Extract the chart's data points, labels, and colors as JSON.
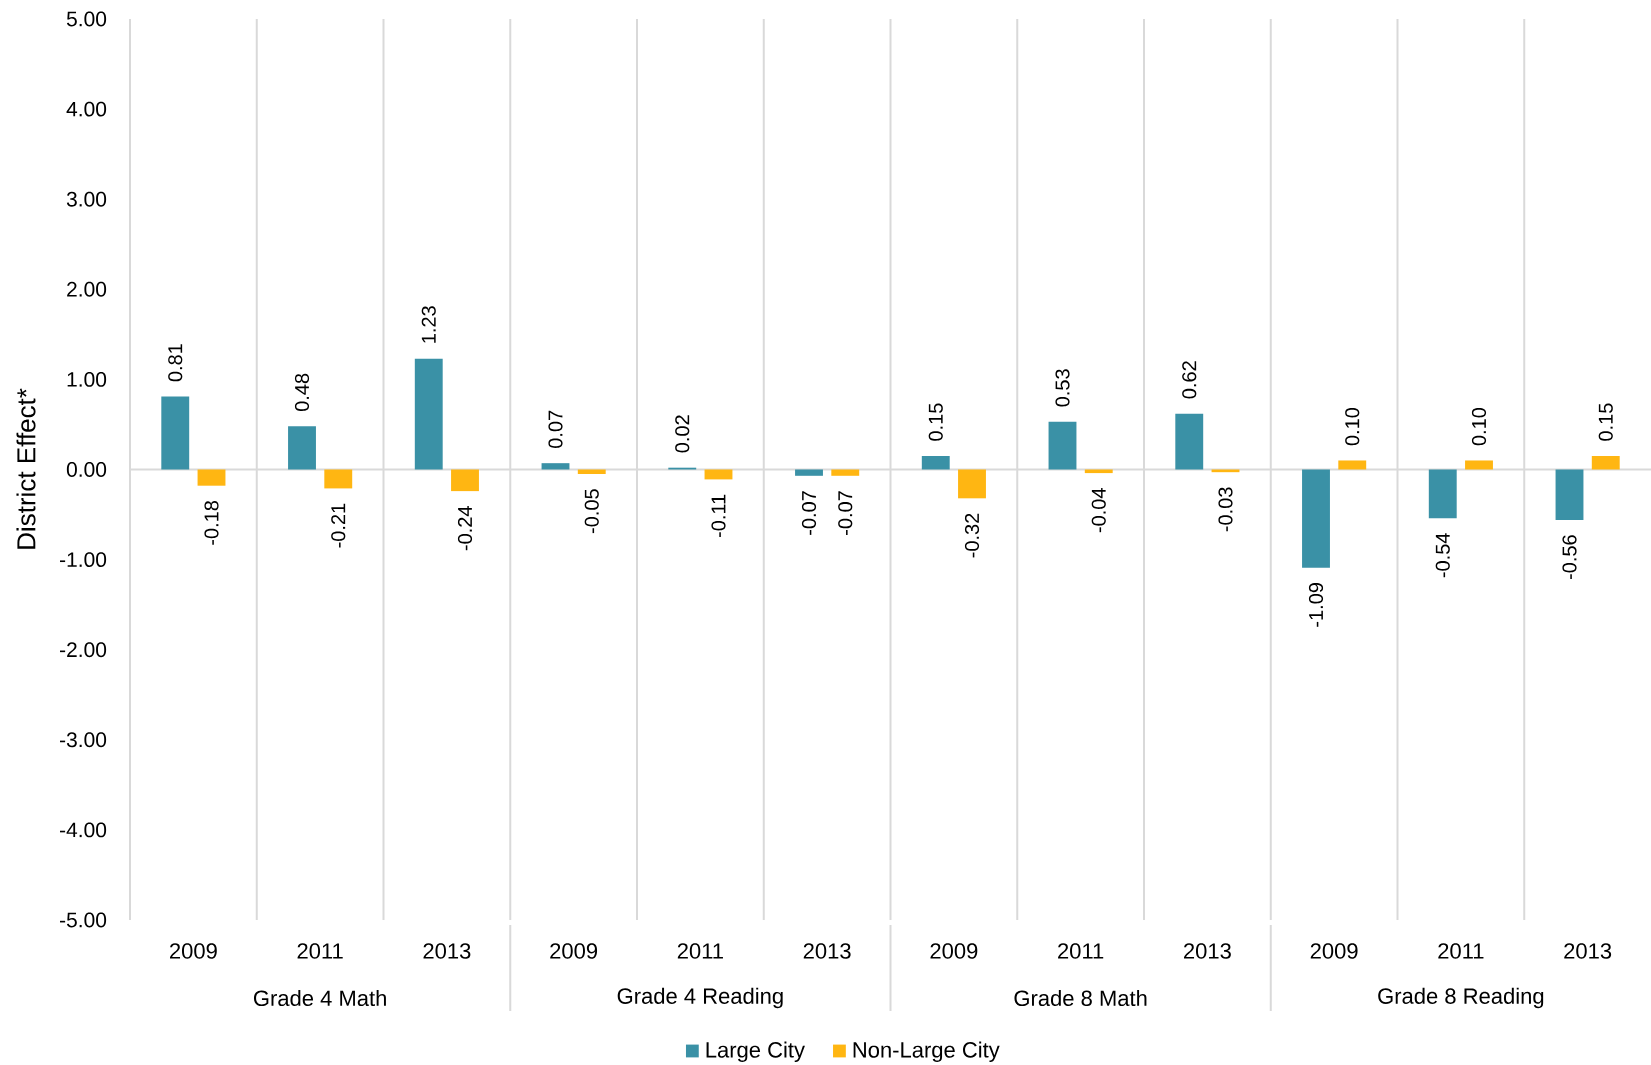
{
  "chart_data": {
    "type": "bar",
    "ylabel": "District Effect*",
    "categories": [
      "2009",
      "2011",
      "2013",
      "2009",
      "2011",
      "2013",
      "2009",
      "2011",
      "2013",
      "2009",
      "2011",
      "2013"
    ],
    "annotations": [
      "Grade 4 Math",
      "Grade 4  Reading",
      "Grade 8 Math",
      "Grade 8 Reading"
    ],
    "series": [
      {
        "name": "Large City",
        "color": "#3a91a6",
        "values": [
          0.81,
          0.48,
          1.23,
          0.07,
          0.02,
          -0.07,
          0.15,
          0.53,
          0.62,
          -1.09,
          -0.54,
          -0.56
        ],
        "value_labels": [
          "0.81",
          "0.48",
          "1.23",
          "0.07",
          "0.02",
          "-0.07",
          "0.15",
          "0.53",
          "0.62",
          "-1.09",
          "-0.54",
          "-0.56"
        ]
      },
      {
        "name": "Non-Large City",
        "color": "#ffb612",
        "values": [
          -0.18,
          -0.21,
          -0.24,
          -0.05,
          -0.11,
          -0.07,
          -0.32,
          -0.04,
          -0.03,
          0.1,
          0.1,
          0.15
        ],
        "value_labels": [
          "-0.18",
          "-0.21",
          "-0.24",
          "-0.05",
          "-0.11",
          "-0.07",
          "-0.32",
          "-0.04",
          "-0.03",
          "0.10",
          "0.10",
          "0.15"
        ]
      }
    ],
    "ylim": [
      -5,
      5
    ],
    "yticks": [
      {
        "value": -5,
        "label": "-5.00"
      },
      {
        "value": -4,
        "label": "-4.00"
      },
      {
        "value": -3,
        "label": "-3.00"
      },
      {
        "value": -2,
        "label": "-2.00"
      },
      {
        "value": -1,
        "label": "-1.00"
      },
      {
        "value": 0,
        "label": "0.00"
      },
      {
        "value": 1,
        "label": "1.00"
      },
      {
        "value": 2,
        "label": "2.00"
      },
      {
        "value": 3,
        "label": "3.00"
      },
      {
        "value": 4,
        "label": "4.00"
      },
      {
        "value": 5,
        "label": "5.00"
      }
    ],
    "ref_lines": [
      {
        "axis": "y",
        "value": 0,
        "color": "#d9d9d9"
      }
    ],
    "grid": "x",
    "legend": "bottom"
  }
}
